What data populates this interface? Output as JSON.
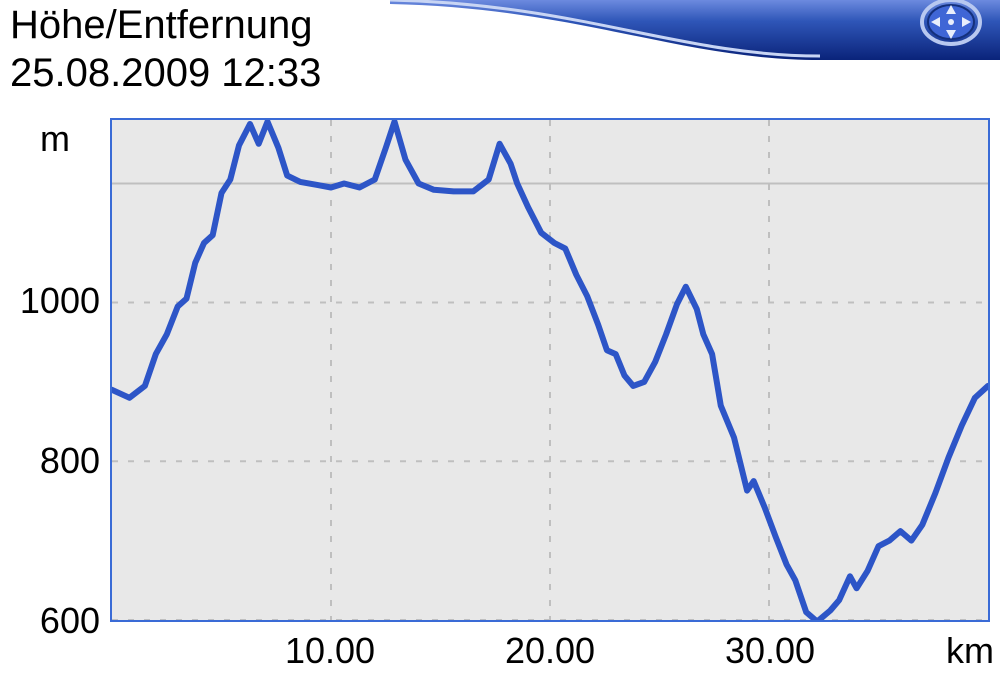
{
  "header": {
    "title": "Höhe/Entfernung",
    "datetime": "25.08.2009 12:33",
    "bar_color_a": "#0a237a",
    "bar_color_b": "#2f56b8",
    "bar_color_c": "#6c8adf",
    "icon_ring_outer": "#b8c8f0",
    "icon_ring_inner": "#2f4fb0",
    "icon_fill": "#3f66d6"
  },
  "chart": {
    "type": "line",
    "background_color": "#e8e8e8",
    "border_color": "#3a6bd6",
    "grid_color": "#bfbfbf",
    "line_color": "#2d55c7",
    "line_width": 6,
    "y_unit": "m",
    "x_unit": "km",
    "xlim": [
      0,
      40
    ],
    "ylim": [
      600,
      1230
    ],
    "x_ticks": [
      10.0,
      20.0,
      30.0
    ],
    "x_tick_labels": [
      "10.00",
      "20.00",
      "30.00"
    ],
    "y_ticks": [
      600,
      800,
      1000
    ],
    "y_gridlines": [
      1150
    ],
    "data": [
      [
        0.0,
        890
      ],
      [
        0.8,
        880
      ],
      [
        1.5,
        895
      ],
      [
        2.0,
        935
      ],
      [
        2.5,
        960
      ],
      [
        3.0,
        995
      ],
      [
        3.4,
        1005
      ],
      [
        3.8,
        1050
      ],
      [
        4.2,
        1075
      ],
      [
        4.6,
        1085
      ],
      [
        5.0,
        1138
      ],
      [
        5.4,
        1155
      ],
      [
        5.8,
        1198
      ],
      [
        6.3,
        1225
      ],
      [
        6.7,
        1200
      ],
      [
        7.1,
        1228
      ],
      [
        7.6,
        1195
      ],
      [
        8.0,
        1160
      ],
      [
        8.6,
        1152
      ],
      [
        9.4,
        1148
      ],
      [
        10.0,
        1145
      ],
      [
        10.6,
        1150
      ],
      [
        11.3,
        1145
      ],
      [
        12.0,
        1155
      ],
      [
        12.5,
        1195
      ],
      [
        12.9,
        1228
      ],
      [
        13.4,
        1180
      ],
      [
        14.0,
        1150
      ],
      [
        14.7,
        1142
      ],
      [
        15.6,
        1140
      ],
      [
        16.5,
        1140
      ],
      [
        17.2,
        1155
      ],
      [
        17.7,
        1200
      ],
      [
        18.2,
        1175
      ],
      [
        18.5,
        1150
      ],
      [
        19.0,
        1120
      ],
      [
        19.6,
        1088
      ],
      [
        20.2,
        1075
      ],
      [
        20.7,
        1068
      ],
      [
        21.2,
        1035
      ],
      [
        21.7,
        1008
      ],
      [
        22.2,
        972
      ],
      [
        22.6,
        940
      ],
      [
        23.0,
        935
      ],
      [
        23.4,
        908
      ],
      [
        23.8,
        895
      ],
      [
        24.3,
        900
      ],
      [
        24.8,
        925
      ],
      [
        25.3,
        960
      ],
      [
        25.8,
        998
      ],
      [
        26.2,
        1020
      ],
      [
        26.7,
        992
      ],
      [
        27.0,
        960
      ],
      [
        27.4,
        935
      ],
      [
        27.8,
        870
      ],
      [
        28.4,
        830
      ],
      [
        29.0,
        763
      ],
      [
        29.3,
        775
      ],
      [
        29.8,
        742
      ],
      [
        30.3,
        705
      ],
      [
        30.8,
        670
      ],
      [
        31.2,
        650
      ],
      [
        31.7,
        610
      ],
      [
        32.2,
        598
      ],
      [
        32.8,
        612
      ],
      [
        33.2,
        625
      ],
      [
        33.7,
        655
      ],
      [
        34.0,
        640
      ],
      [
        34.5,
        662
      ],
      [
        35.0,
        693
      ],
      [
        35.5,
        700
      ],
      [
        36.0,
        712
      ],
      [
        36.5,
        700
      ],
      [
        37.0,
        720
      ],
      [
        37.6,
        760
      ],
      [
        38.2,
        805
      ],
      [
        38.8,
        845
      ],
      [
        39.4,
        880
      ],
      [
        40.0,
        895
      ]
    ]
  }
}
